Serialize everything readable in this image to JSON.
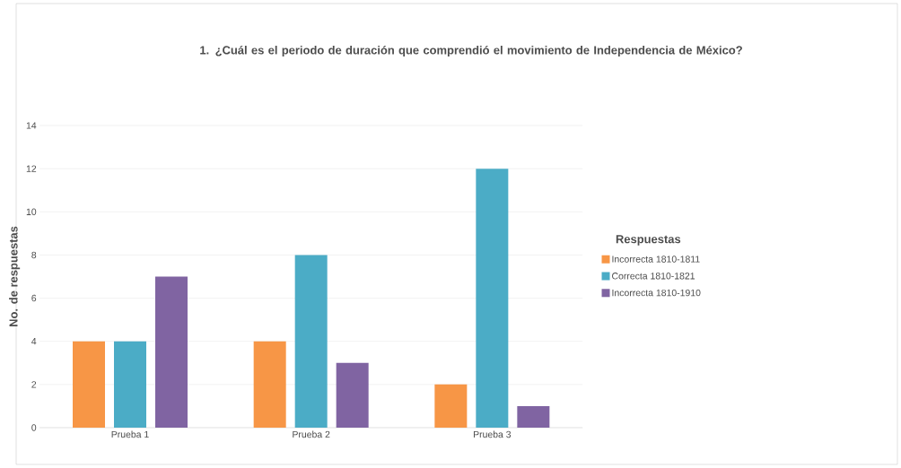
{
  "chart_data": {
    "type": "bar",
    "title": "1. ¿Cuál es el periodo de duración que comprendió el movimiento de Independencia de México?",
    "ylabel": "No. de respuestas",
    "legend_title": "Respuestas",
    "categories": [
      "Prueba 1",
      "Prueba 2",
      "Prueba 3"
    ],
    "series": [
      {
        "name": "Incorrecta 1810-1811",
        "color": "#f79646",
        "values": [
          4,
          4,
          2
        ]
      },
      {
        "name": "Correcta 1810-1821",
        "color": "#4bacc6",
        "values": [
          4,
          8,
          12
        ]
      },
      {
        "name": "Incorrecta 1810-1910",
        "color": "#8064a2",
        "values": [
          7,
          3,
          1
        ]
      }
    ],
    "ylim": [
      0,
      14
    ],
    "yticks": [
      0,
      2,
      4,
      6,
      8,
      10,
      12,
      14
    ],
    "grid": "y",
    "legend": "right"
  }
}
